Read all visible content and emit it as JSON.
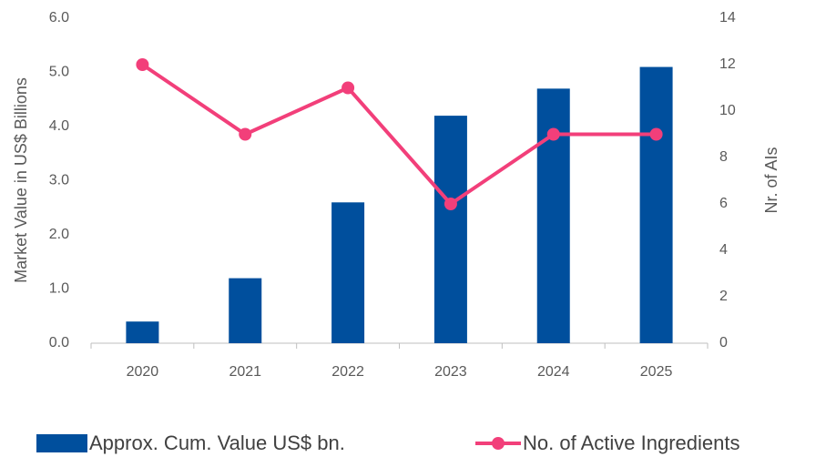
{
  "chart_data": {
    "type": "bar",
    "categories": [
      "2020",
      "2021",
      "2022",
      "2023",
      "2024",
      "2025"
    ],
    "series": [
      {
        "name": "Approx. Cum. Value US$ bn.",
        "type": "bar",
        "color": "#004f9d",
        "values": [
          0.4,
          1.2,
          2.6,
          4.2,
          4.7,
          5.1
        ]
      },
      {
        "name": "No. of Active Ingredients",
        "type": "line",
        "axis": "y2",
        "color": "#f23f7a",
        "values": [
          12,
          9,
          11,
          6,
          9,
          9
        ]
      }
    ],
    "ylabel": "Market Value in US$ Billions",
    "y2label": "Nr. of AIs",
    "ylim": [
      0,
      6
    ],
    "yticks": [
      {
        "value": 0,
        "label": "0.0"
      },
      {
        "value": 1,
        "label": "1.0"
      },
      {
        "value": 2,
        "label": "2.0"
      },
      {
        "value": 3,
        "label": "3.0"
      },
      {
        "value": 4,
        "label": "4.0"
      },
      {
        "value": 5,
        "label": "5.0"
      },
      {
        "value": 6,
        "label": "6.0"
      }
    ],
    "y2lim": [
      0,
      14
    ],
    "y2ticks": [
      0,
      2,
      4,
      6,
      8,
      10,
      12,
      14
    ],
    "grid": false,
    "legend": "bottom"
  }
}
